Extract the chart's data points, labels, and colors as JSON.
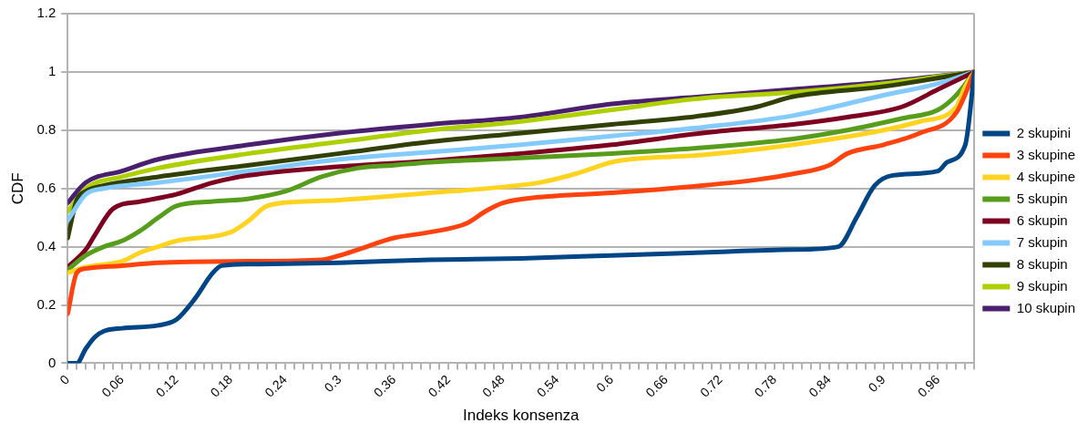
{
  "chart_data": {
    "type": "line",
    "xlabel": "Indeks konsenza",
    "ylabel": "CDF",
    "xlim": [
      0,
      1
    ],
    "ylim": [
      0,
      1.2
    ],
    "yticks": [
      0,
      0.2,
      0.4,
      0.6,
      0.8,
      1,
      1.2
    ],
    "xticks": [
      0,
      {
        "value": 0.01,
        "label": null
      },
      {
        "value": 0.02,
        "label": null
      },
      {
        "value": 0.03,
        "label": null
      },
      {
        "value": 0.04,
        "label": null
      },
      {
        "value": 0.05,
        "label": null
      },
      0.06,
      {
        "value": 0.07,
        "label": null
      },
      {
        "value": 0.08,
        "label": null
      },
      {
        "value": 0.09,
        "label": null
      },
      {
        "value": 0.1,
        "label": null
      },
      {
        "value": 0.11,
        "label": null
      },
      0.12,
      {
        "value": 0.13,
        "label": null
      },
      {
        "value": 0.14,
        "label": null
      },
      {
        "value": 0.15,
        "label": null
      },
      {
        "value": 0.16,
        "label": null
      },
      {
        "value": 0.17,
        "label": null
      },
      0.18,
      {
        "value": 0.19,
        "label": null
      },
      {
        "value": 0.2,
        "label": null
      },
      {
        "value": 0.21,
        "label": null
      },
      {
        "value": 0.22,
        "label": null
      },
      {
        "value": 0.23,
        "label": null
      },
      0.24,
      {
        "value": 0.25,
        "label": null
      },
      {
        "value": 0.26,
        "label": null
      },
      {
        "value": 0.27,
        "label": null
      },
      {
        "value": 0.28,
        "label": null
      },
      {
        "value": 0.29,
        "label": null
      },
      0.3,
      {
        "value": 0.31,
        "label": null
      },
      {
        "value": 0.32,
        "label": null
      },
      {
        "value": 0.33,
        "label": null
      },
      {
        "value": 0.34,
        "label": null
      },
      {
        "value": 0.35,
        "label": null
      },
      0.36,
      {
        "value": 0.37,
        "label": null
      },
      {
        "value": 0.38,
        "label": null
      },
      {
        "value": 0.39,
        "label": null
      },
      {
        "value": 0.4,
        "label": null
      },
      {
        "value": 0.41,
        "label": null
      },
      0.42,
      {
        "value": 0.43,
        "label": null
      },
      {
        "value": 0.44,
        "label": null
      },
      {
        "value": 0.45,
        "label": null
      },
      {
        "value": 0.46,
        "label": null
      },
      {
        "value": 0.47,
        "label": null
      },
      0.48,
      {
        "value": 0.49,
        "label": null
      },
      {
        "value": 0.5,
        "label": null
      },
      {
        "value": 0.51,
        "label": null
      },
      {
        "value": 0.52,
        "label": null
      },
      {
        "value": 0.53,
        "label": null
      },
      0.54,
      {
        "value": 0.55,
        "label": null
      },
      {
        "value": 0.56,
        "label": null
      },
      {
        "value": 0.57,
        "label": null
      },
      {
        "value": 0.58,
        "label": null
      },
      {
        "value": 0.59,
        "label": null
      },
      0.6,
      {
        "value": 0.61,
        "label": null
      },
      {
        "value": 0.62,
        "label": null
      },
      {
        "value": 0.63,
        "label": null
      },
      {
        "value": 0.64,
        "label": null
      },
      {
        "value": 0.65,
        "label": null
      },
      0.66,
      {
        "value": 0.67,
        "label": null
      },
      {
        "value": 0.68,
        "label": null
      },
      {
        "value": 0.69,
        "label": null
      },
      {
        "value": 0.7,
        "label": null
      },
      {
        "value": 0.71,
        "label": null
      },
      0.72,
      {
        "value": 0.73,
        "label": null
      },
      {
        "value": 0.74,
        "label": null
      },
      {
        "value": 0.75,
        "label": null
      },
      {
        "value": 0.76,
        "label": null
      },
      {
        "value": 0.77,
        "label": null
      },
      0.78,
      {
        "value": 0.79,
        "label": null
      },
      {
        "value": 0.8,
        "label": null
      },
      {
        "value": 0.81,
        "label": null
      },
      {
        "value": 0.82,
        "label": null
      },
      {
        "value": 0.83,
        "label": null
      },
      0.84,
      {
        "value": 0.85,
        "label": null
      },
      {
        "value": 0.86,
        "label": null
      },
      {
        "value": 0.87,
        "label": null
      },
      {
        "value": 0.88,
        "label": null
      },
      {
        "value": 0.89,
        "label": null
      },
      0.9,
      {
        "value": 0.91,
        "label": null
      },
      {
        "value": 0.92,
        "label": null
      },
      {
        "value": 0.93,
        "label": null
      },
      {
        "value": 0.94,
        "label": null
      },
      {
        "value": 0.95,
        "label": null
      },
      0.96,
      {
        "value": 0.97,
        "label": null
      },
      {
        "value": 0.98,
        "label": null
      },
      {
        "value": 0.99,
        "label": null
      },
      {
        "value": 1,
        "label": null
      }
    ],
    "grid": "y",
    "legend": "right",
    "marker": "none",
    "line_style": "solid",
    "series": [
      {
        "name": "2 skupini",
        "color": "#004586",
        "x": [
          0,
          0.01,
          0.02,
          0.03,
          0.04,
          0.06,
          0.1,
          0.12,
          0.14,
          0.16,
          0.17,
          0.2,
          0.3,
          0.4,
          0.5,
          0.6,
          0.7,
          0.8,
          0.85,
          0.87,
          0.89,
          0.91,
          0.96,
          0.97,
          0.99,
          1
        ],
        "values": [
          0,
          0,
          0.05,
          0.09,
          0.11,
          0.12,
          0.13,
          0.15,
          0.22,
          0.31,
          0.335,
          0.34,
          0.345,
          0.355,
          0.36,
          0.37,
          0.38,
          0.39,
          0.4,
          0.5,
          0.61,
          0.645,
          0.66,
          0.69,
          0.75,
          1
        ]
      },
      {
        "name": "3 skupine",
        "color": "#ff420e",
        "x": [
          0,
          0.01,
          0.02,
          0.06,
          0.1,
          0.2,
          0.28,
          0.3,
          0.32,
          0.36,
          0.4,
          0.44,
          0.46,
          0.48,
          0.52,
          0.6,
          0.7,
          0.76,
          0.8,
          0.84,
          0.86,
          0.9,
          0.94,
          0.98,
          1
        ],
        "values": [
          0.17,
          0.31,
          0.325,
          0.335,
          0.345,
          0.35,
          0.355,
          0.37,
          0.39,
          0.43,
          0.45,
          0.48,
          0.52,
          0.55,
          0.57,
          0.585,
          0.61,
          0.63,
          0.65,
          0.68,
          0.72,
          0.75,
          0.79,
          0.86,
          1
        ]
      },
      {
        "name": "4 skupine",
        "color": "#ffd320",
        "x": [
          0,
          0.02,
          0.06,
          0.08,
          0.1,
          0.12,
          0.18,
          0.2,
          0.22,
          0.26,
          0.3,
          0.4,
          0.48,
          0.52,
          0.56,
          0.6,
          0.62,
          0.7,
          0.8,
          0.9,
          0.94,
          0.98,
          0.99,
          1
        ],
        "values": [
          0.31,
          0.33,
          0.35,
          0.38,
          0.4,
          0.42,
          0.45,
          0.49,
          0.54,
          0.555,
          0.56,
          0.585,
          0.605,
          0.62,
          0.65,
          0.69,
          0.7,
          0.715,
          0.75,
          0.8,
          0.83,
          0.88,
          0.95,
          1
        ]
      },
      {
        "name": "5 skupin",
        "color": "#579d1c",
        "x": [
          0,
          0.02,
          0.04,
          0.06,
          0.08,
          0.1,
          0.12,
          0.16,
          0.2,
          0.24,
          0.28,
          0.32,
          0.36,
          0.4,
          0.5,
          0.6,
          0.7,
          0.8,
          0.86,
          0.92,
          0.96,
          0.98,
          1
        ],
        "values": [
          0.32,
          0.37,
          0.4,
          0.42,
          0.455,
          0.5,
          0.54,
          0.555,
          0.565,
          0.59,
          0.64,
          0.67,
          0.68,
          0.69,
          0.705,
          0.72,
          0.74,
          0.77,
          0.8,
          0.84,
          0.87,
          0.92,
          1
        ]
      },
      {
        "name": "6 skupin",
        "color": "#7e0021",
        "x": [
          0,
          0.02,
          0.03,
          0.05,
          0.08,
          0.12,
          0.16,
          0.2,
          0.3,
          0.4,
          0.5,
          0.6,
          0.7,
          0.8,
          0.86,
          0.92,
          0.96,
          1
        ],
        "values": [
          0.33,
          0.39,
          0.44,
          0.53,
          0.555,
          0.58,
          0.62,
          0.645,
          0.675,
          0.695,
          0.72,
          0.75,
          0.79,
          0.82,
          0.845,
          0.88,
          0.94,
          1
        ]
      },
      {
        "name": "7 skupin",
        "color": "#83caff",
        "x": [
          0,
          0.02,
          0.04,
          0.1,
          0.2,
          0.3,
          0.4,
          0.5,
          0.6,
          0.7,
          0.8,
          0.9,
          0.96,
          1
        ],
        "values": [
          0.49,
          0.58,
          0.6,
          0.62,
          0.66,
          0.7,
          0.725,
          0.75,
          0.78,
          0.81,
          0.85,
          0.92,
          0.96,
          1
        ]
      },
      {
        "name": "8 skupin",
        "color": "#314004",
        "x": [
          0,
          0.01,
          0.02,
          0.04,
          0.1,
          0.2,
          0.3,
          0.4,
          0.5,
          0.6,
          0.7,
          0.76,
          0.8,
          0.9,
          1
        ],
        "values": [
          0.43,
          0.56,
          0.59,
          0.61,
          0.64,
          0.68,
          0.72,
          0.76,
          0.79,
          0.82,
          0.85,
          0.88,
          0.915,
          0.95,
          1
        ]
      },
      {
        "name": "9 skupin",
        "color": "#aecf00",
        "x": [
          0,
          0.02,
          0.06,
          0.1,
          0.2,
          0.3,
          0.4,
          0.5,
          0.6,
          0.7,
          0.8,
          0.9,
          1
        ],
        "values": [
          0.52,
          0.6,
          0.64,
          0.67,
          0.72,
          0.76,
          0.8,
          0.83,
          0.87,
          0.91,
          0.93,
          0.96,
          1
        ]
      },
      {
        "name": "10 skupin",
        "color": "#4b1f6f",
        "x": [
          0,
          0.02,
          0.06,
          0.1,
          0.2,
          0.3,
          0.4,
          0.5,
          0.6,
          0.7,
          0.8,
          0.9,
          1
        ],
        "values": [
          0.55,
          0.62,
          0.66,
          0.7,
          0.75,
          0.79,
          0.82,
          0.845,
          0.89,
          0.915,
          0.94,
          0.965,
          1
        ]
      }
    ]
  }
}
